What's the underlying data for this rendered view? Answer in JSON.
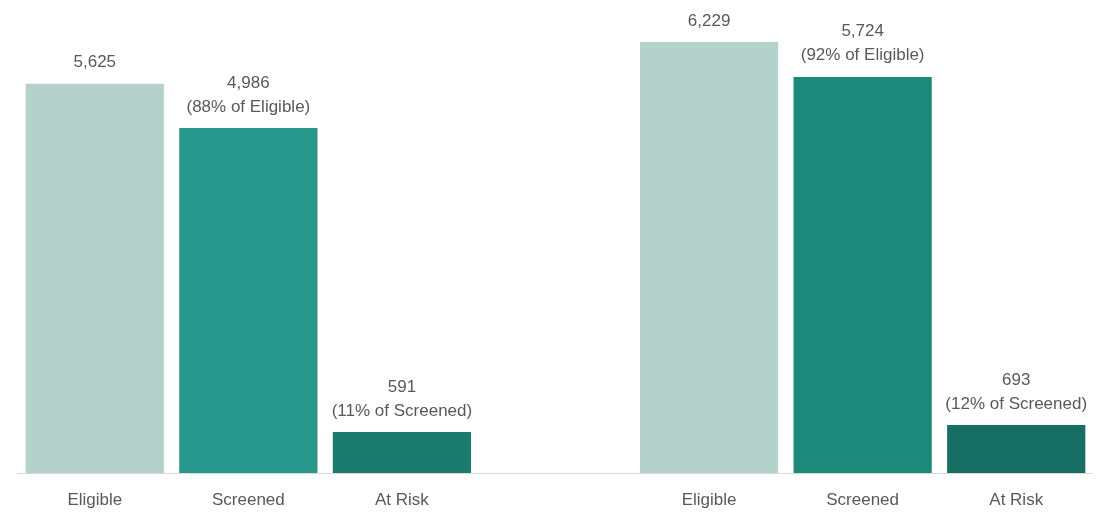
{
  "chart_data": {
    "type": "bar",
    "categories": [
      "Eligible",
      "Screened",
      "At Risk",
      null,
      "Eligible",
      "Screened",
      "At Risk"
    ],
    "values": [
      5625,
      4986,
      591,
      null,
      6229,
      5724,
      693
    ],
    "colors": [
      "#b5d1cb",
      "#26978a",
      "#1b7b6f",
      null,
      "#b5d1cb",
      "#1b8a7a",
      "#176f64"
    ],
    "value_labels": [
      "5,625",
      "4,986\n(88% of Eligible)",
      "591\n(11% of Screened)",
      null,
      "6,229",
      "5,724\n(92% of Eligible)",
      "693\n(12% of Screened)"
    ]
  }
}
